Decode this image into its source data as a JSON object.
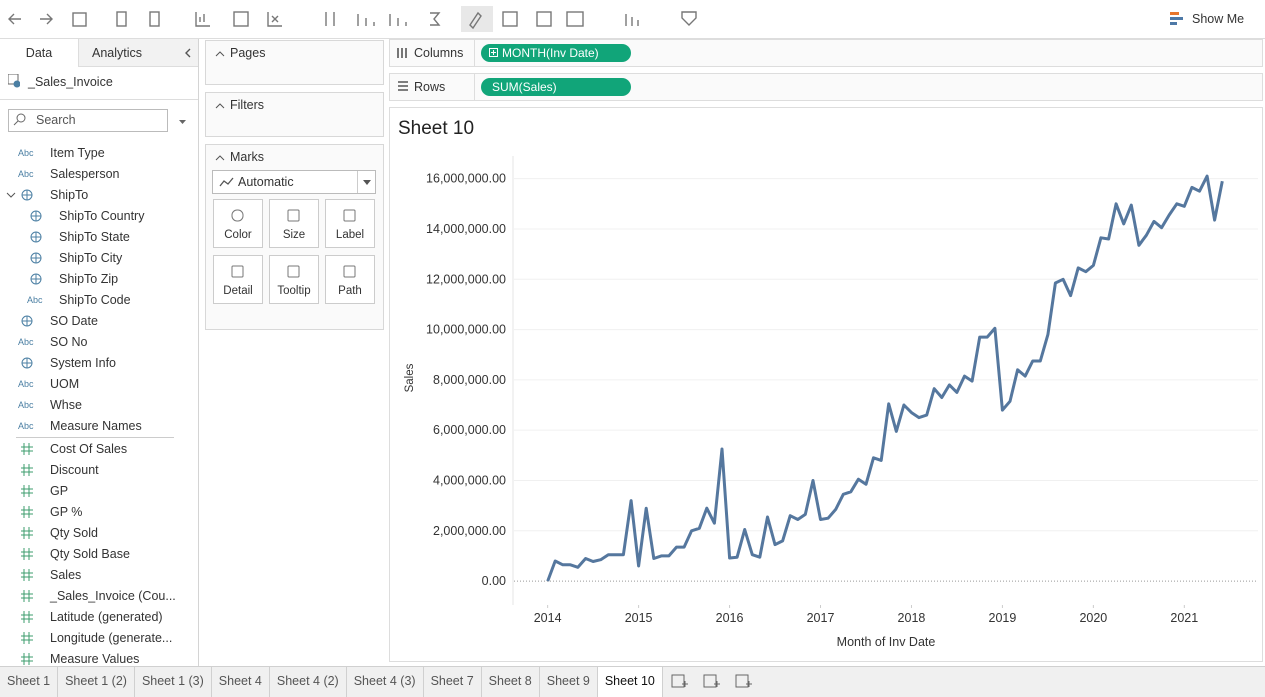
{
  "toolbar": {
    "show_me": "Show Me"
  },
  "data_pane": {
    "tabs": [
      "Data",
      "Analytics"
    ],
    "source": "_Sales_Invoice",
    "search": "Search",
    "dimensions": [
      {
        "icon": "Abc",
        "name": "Item Type"
      },
      {
        "icon": "Abc",
        "name": "Salesperson"
      },
      {
        "name": "ShipTo",
        "children": [
          {
            "name": "ShipTo Country"
          },
          {
            "name": "ShipTo State"
          },
          {
            "name": "ShipTo City"
          },
          {
            "name": "ShipTo Zip"
          },
          {
            "icon": "Abc",
            "name": "ShipTo Code"
          }
        ]
      },
      {
        "name": "SO Date"
      },
      {
        "icon": "Abc",
        "name": "SO No"
      },
      {
        "name": "System Info"
      },
      {
        "icon": "Abc",
        "name": "UOM"
      },
      {
        "icon": "Abc",
        "name": "Whse"
      },
      {
        "icon": "Abc",
        "name": "Measure Names"
      }
    ],
    "measures": [
      "Cost Of Sales",
      "Discount",
      "GP",
      "GP %",
      "Qty Sold",
      "Qty Sold Base",
      "Sales",
      "_Sales_Invoice (Cou...",
      "Latitude (generated)",
      "Longitude (generate...",
      "Measure Values"
    ]
  },
  "cards": {
    "pages": "Pages",
    "filters": "Filters",
    "marks": "Marks",
    "mark_type": "Automatic",
    "buttons": [
      "Color",
      "Size",
      "Label",
      "Detail",
      "Tooltip",
      "Path"
    ]
  },
  "shelves": {
    "columns": {
      "label": "Columns",
      "pill": "MONTH(Inv Date)"
    },
    "rows": {
      "label": "Rows",
      "pill": "SUM(Sales)"
    }
  },
  "chart_data": {
    "type": "line",
    "title": "Sheet 10",
    "x_label": "Month of Inv Date",
    "y_label": "Sales",
    "color": "#55779e",
    "grid": true,
    "x": [
      2014,
      2014.083,
      2014.167,
      2014.25,
      2014.333,
      2014.417,
      2014.5,
      2014.583,
      2014.667,
      2014.75,
      2014.833,
      2014.917,
      2015,
      2015.083,
      2015.167,
      2015.25,
      2015.333,
      2015.417,
      2015.5,
      2015.583,
      2015.667,
      2015.75,
      2015.833,
      2015.917,
      2016,
      2016.083,
      2016.167,
      2016.25,
      2016.333,
      2016.417,
      2016.5,
      2016.583,
      2016.667,
      2016.75,
      2016.833,
      2016.917,
      2017,
      2017.083,
      2017.167,
      2017.25,
      2017.333,
      2017.417,
      2017.5,
      2017.583,
      2017.667,
      2017.75,
      2017.833,
      2017.917,
      2018,
      2018.083,
      2018.167,
      2018.25,
      2018.333,
      2018.417,
      2018.5,
      2018.583,
      2018.667,
      2018.75,
      2018.833,
      2018.917,
      2019,
      2019.083,
      2019.167,
      2019.25,
      2019.333,
      2019.417,
      2019.5,
      2019.583,
      2019.667,
      2019.75,
      2019.833,
      2019.917,
      2020,
      2020.083,
      2020.167,
      2020.25,
      2020.333,
      2020.417,
      2020.5,
      2020.583,
      2020.667,
      2020.75,
      2020.833,
      2020.917,
      2021,
      2021.083,
      2021.167,
      2021.25,
      2021.333,
      2021.417
    ],
    "values": [
      0,
      800000,
      650000,
      650000,
      550000,
      900000,
      780000,
      850000,
      1050000,
      1050000,
      1050000,
      3200000,
      600000,
      2900000,
      900000,
      1000000,
      1000000,
      1350000,
      1350000,
      2000000,
      2100000,
      2900000,
      2300000,
      5250000,
      920000,
      950000,
      2050000,
      1050000,
      950000,
      2550000,
      1450000,
      1600000,
      2600000,
      2450000,
      2650000,
      4000000,
      2450000,
      2500000,
      2850000,
      3450000,
      3550000,
      4050000,
      3850000,
      4900000,
      4800000,
      7050000,
      5950000,
      7000000,
      6700000,
      6500000,
      6600000,
      7650000,
      7300000,
      7800000,
      7500000,
      8150000,
      7950000,
      9700000,
      9700000,
      10050000,
      6800000,
      7150000,
      8400000,
      8150000,
      8750000,
      8750000,
      9800000,
      11850000,
      12000000,
      11350000,
      12450000,
      12300000,
      12550000,
      13650000,
      13600000,
      15000000,
      14200000,
      14950000,
      13350000,
      13750000,
      14300000,
      14050000,
      14550000,
      15000000,
      14900000,
      15650000,
      15500000,
      16100000,
      14350000,
      15900000
    ],
    "xlim": [
      2013.63,
      2021.81
    ],
    "xticks": [
      2014,
      2015,
      2016,
      2017,
      2018,
      2019,
      2020,
      2021
    ],
    "ylim": [
      -950000,
      16900000
    ],
    "yticks": [
      {
        "value": 0,
        "label": "0.00"
      },
      {
        "value": 2000000,
        "label": "2,000,000.00"
      },
      {
        "value": 4000000,
        "label": "4,000,000.00"
      },
      {
        "value": 6000000,
        "label": "6,000,000.00"
      },
      {
        "value": 8000000,
        "label": "8,000,000.00"
      },
      {
        "value": 10000000,
        "label": "10,000,000.00"
      },
      {
        "value": 12000000,
        "label": "12,000,000.00"
      },
      {
        "value": 14000000,
        "label": "14,000,000.00"
      },
      {
        "value": 16000000,
        "label": "16,000,000.00"
      }
    ]
  },
  "sheet_tabs": {
    "tabs": [
      "Sheet 1",
      "Sheet 1 (2)",
      "Sheet 1 (3)",
      "Sheet 4",
      "Sheet 4 (2)",
      "Sheet 4 (3)",
      "Sheet 7",
      "Sheet 8",
      "Sheet 9",
      "Sheet 10"
    ],
    "active": 9
  }
}
